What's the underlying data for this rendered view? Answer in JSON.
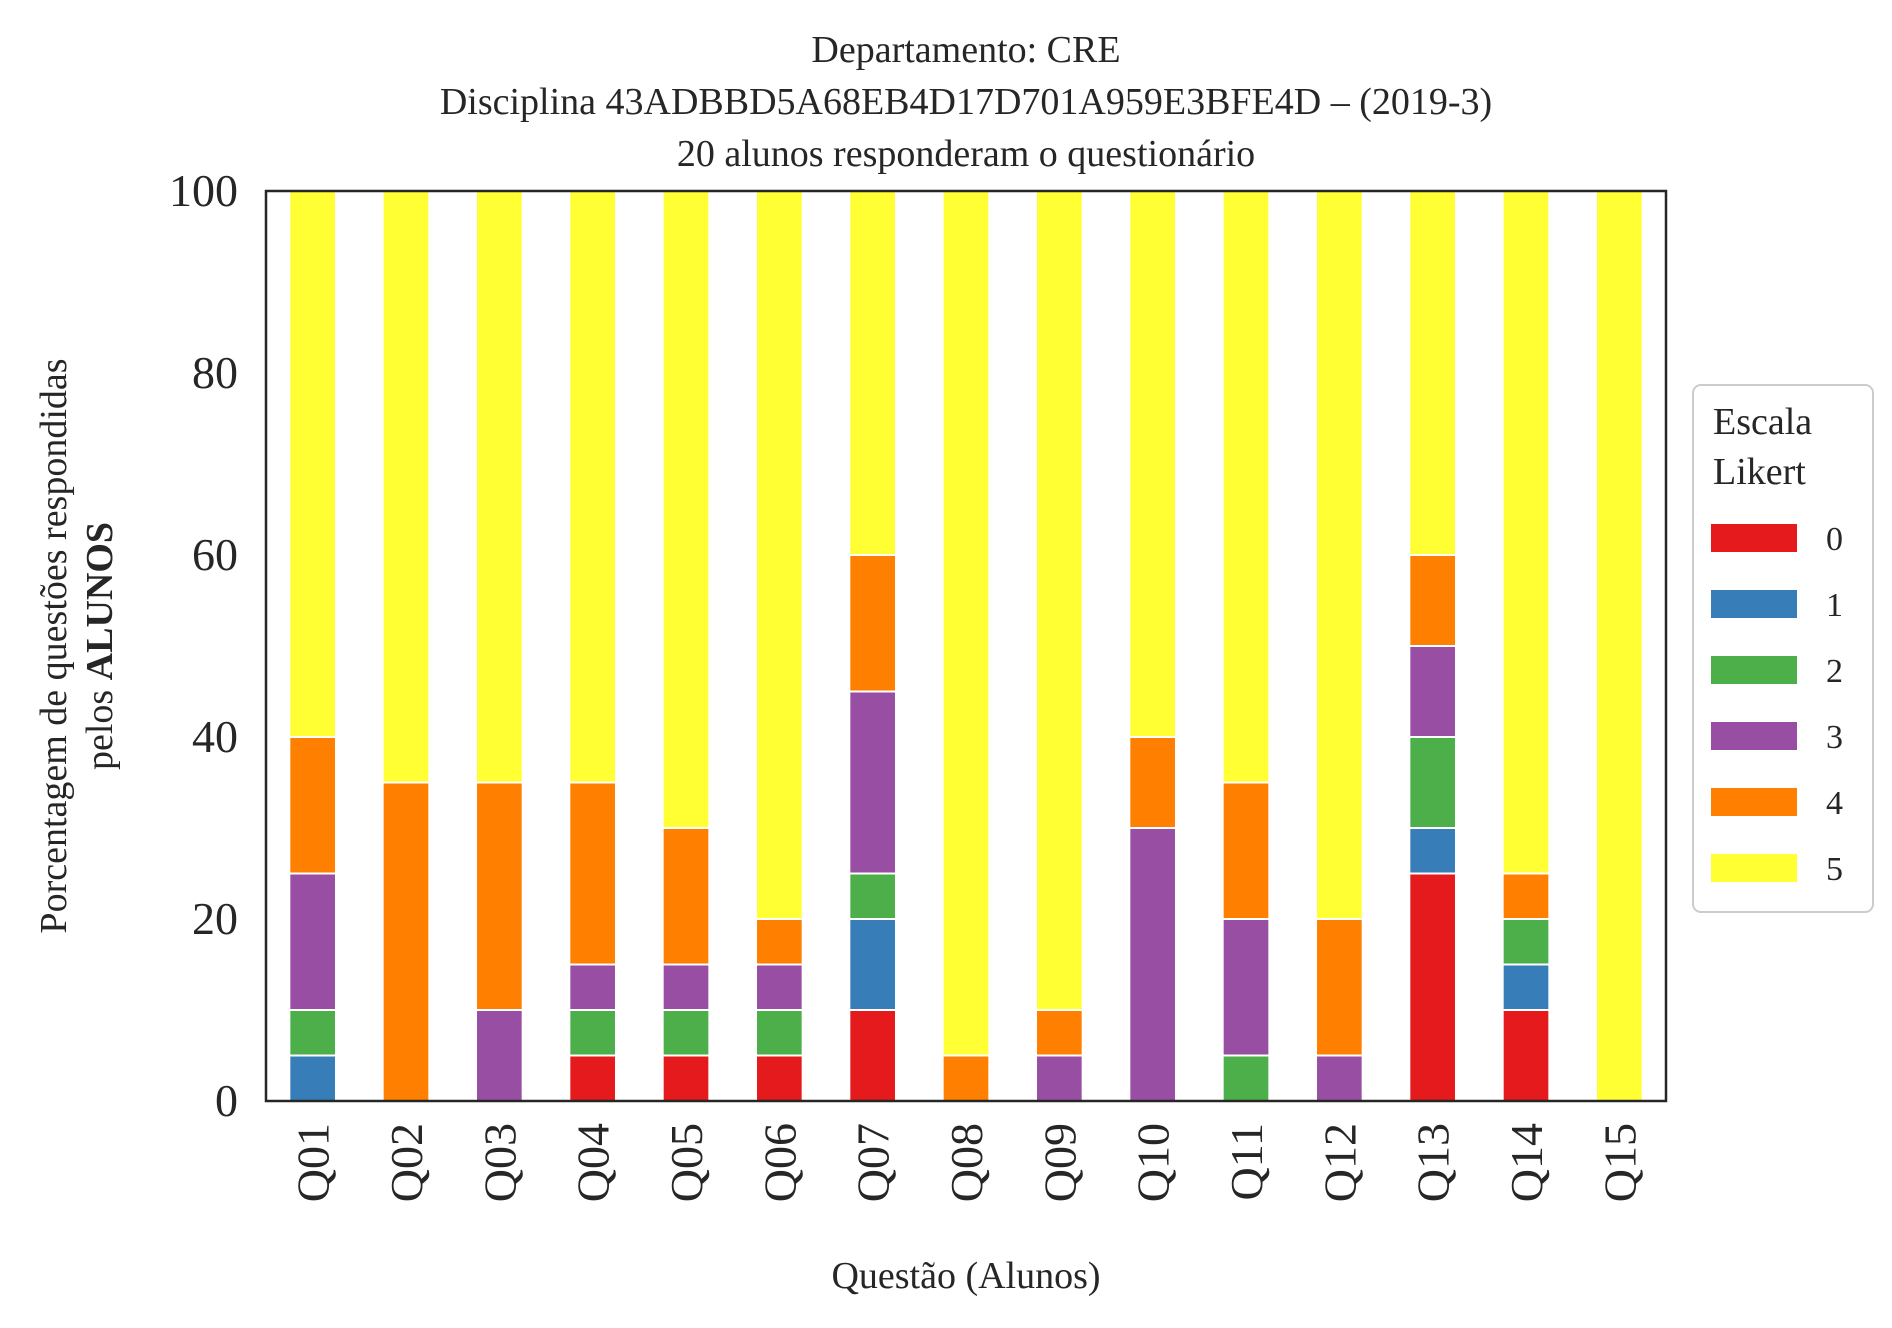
{
  "chart_data": {
    "type": "bar",
    "stacked": true,
    "title_lines": [
      "Departamento: CRE",
      "Disciplina 43ADBBD5A68EB4D17D701A959E3BFE4D – (2019-3)",
      "20 alunos responderam o questionário"
    ],
    "xlabel": "Questão (Alunos)",
    "ylabel_line1": "Porcentagem de questões respondidas",
    "ylabel_line2_prefix": "pelos ",
    "ylabel_line2_bold": "ALUNOS",
    "ylim": [
      0,
      100
    ],
    "yticks": [
      0,
      20,
      40,
      60,
      80,
      100
    ],
    "grid": false,
    "legend": {
      "title_lines": [
        "Escala",
        "Likert"
      ],
      "placement": "center-right, outside plot"
    },
    "categories": [
      "Q01",
      "Q02",
      "Q03",
      "Q04",
      "Q05",
      "Q06",
      "Q07",
      "Q08",
      "Q09",
      "Q10",
      "Q11",
      "Q12",
      "Q13",
      "Q14",
      "Q15"
    ],
    "series": [
      {
        "name": "0",
        "color": "#e41a1c",
        "values": [
          0,
          0,
          0,
          5,
          5,
          5,
          10,
          0,
          0,
          0,
          0,
          0,
          25,
          10,
          0
        ]
      },
      {
        "name": "1",
        "color": "#377eb8",
        "values": [
          5,
          0,
          0,
          0,
          0,
          0,
          10,
          0,
          0,
          0,
          0,
          0,
          5,
          5,
          0
        ]
      },
      {
        "name": "2",
        "color": "#4daf4a",
        "values": [
          5,
          0,
          0,
          5,
          5,
          5,
          5,
          0,
          0,
          0,
          5,
          0,
          10,
          5,
          0
        ]
      },
      {
        "name": "3",
        "color": "#984ea3",
        "values": [
          15,
          0,
          10,
          5,
          5,
          5,
          20,
          0,
          5,
          30,
          15,
          5,
          10,
          0,
          0
        ]
      },
      {
        "name": "4",
        "color": "#ff7f00",
        "values": [
          15,
          35,
          25,
          20,
          15,
          5,
          15,
          5,
          5,
          10,
          15,
          15,
          10,
          5,
          0
        ]
      },
      {
        "name": "5",
        "color": "#ffff33",
        "values": [
          60,
          65,
          65,
          65,
          70,
          80,
          40,
          95,
          90,
          60,
          65,
          80,
          40,
          75,
          100
        ]
      }
    ]
  }
}
